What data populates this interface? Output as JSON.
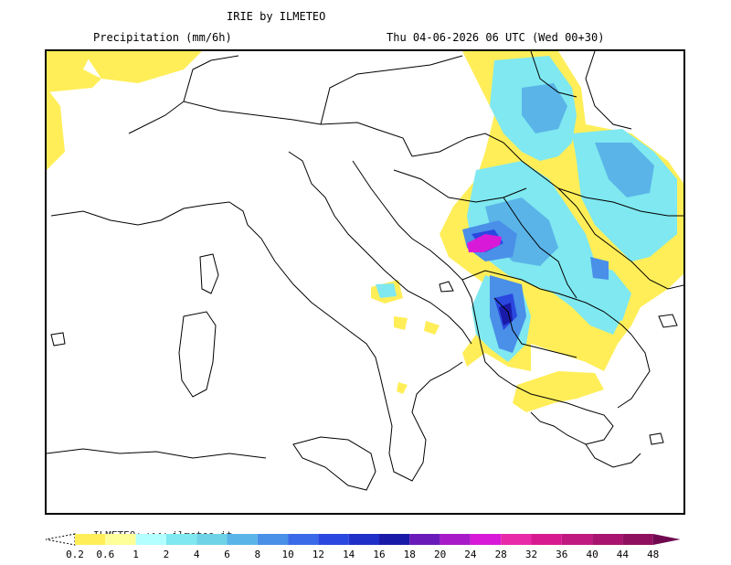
{
  "header": {
    "title": "IRIE by ILMETEO",
    "subtitle": "Precipitation (mm/6h)",
    "datetime": "Thu 04-06-2026 06 UTC (Wed 00+30)"
  },
  "legend": {
    "watermark": "ILMETEO: www.ilmeteo.it",
    "ticks": [
      "0.2",
      "0.6",
      "1",
      "2",
      "4",
      "6",
      "8",
      "10",
      "12",
      "14",
      "16",
      "18",
      "20",
      "24",
      "28",
      "32",
      "36",
      "40",
      "44",
      "48"
    ],
    "colors": [
      "#ffee58",
      "#ffff99",
      "#b3ffff",
      "#7fe8f0",
      "#6fd3e8",
      "#5ab4e8",
      "#4a8fe8",
      "#3a6ae8",
      "#2a48e0",
      "#1f2fc8",
      "#1a1aa8",
      "#6a1ab8",
      "#a81ac8",
      "#d81ad8",
      "#e82aa8",
      "#d81a90",
      "#c01a80",
      "#a81470",
      "#901060",
      "#700850"
    ]
  },
  "map": {
    "colors": {
      "land_border": "#000000",
      "yellow": "#ffee58",
      "light_yellow": "#ffff99",
      "cyan1": "#b3ffff",
      "cyan2": "#7fe8f0",
      "cyan3": "#5ab4e8",
      "blue1": "#4a8fe8",
      "blue2": "#2a48e0",
      "navy": "#1a1aa8",
      "magenta": "#d81ad8"
    }
  }
}
